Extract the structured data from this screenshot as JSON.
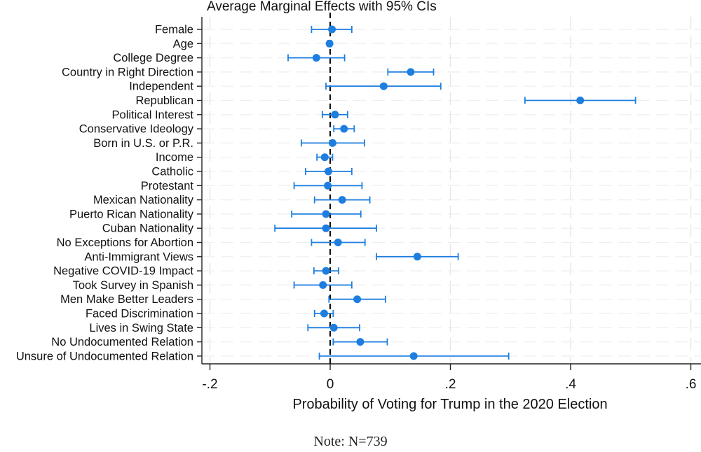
{
  "chart_data": {
    "type": "coefficient-plot",
    "title": "Average Marginal Effects with 95% CIs",
    "xlabel": "Probability of Voting for Trump in the 2020 Election",
    "ylabel": "",
    "xlim": [
      -0.2,
      0.6
    ],
    "xticks": [
      -0.2,
      0,
      0.2,
      0.4,
      0.6
    ],
    "xtick_labels": [
      "-.2",
      "0",
      ".2",
      ".4",
      ".6"
    ],
    "reference_line": 0,
    "grid": true,
    "marker_color": "#1e7ee0",
    "variables": [
      {
        "label": "Female",
        "estimate": 0.003,
        "ci_low": -0.031,
        "ci_high": 0.036
      },
      {
        "label": "Age",
        "estimate": -0.001,
        "ci_low": -0.004,
        "ci_high": 0.002
      },
      {
        "label": "College Degree",
        "estimate": -0.023,
        "ci_low": -0.07,
        "ci_high": 0.024
      },
      {
        "label": "Country in Right Direction",
        "estimate": 0.134,
        "ci_low": 0.096,
        "ci_high": 0.172
      },
      {
        "label": "Independent",
        "estimate": 0.089,
        "ci_low": -0.007,
        "ci_high": 0.184
      },
      {
        "label": "Republican",
        "estimate": 0.416,
        "ci_low": 0.324,
        "ci_high": 0.508
      },
      {
        "label": "Political Interest",
        "estimate": 0.008,
        "ci_low": -0.013,
        "ci_high": 0.029
      },
      {
        "label": "Conservative Ideology",
        "estimate": 0.023,
        "ci_low": 0.006,
        "ci_high": 0.04
      },
      {
        "label": "Born in U.S. or P.R.",
        "estimate": 0.004,
        "ci_low": -0.048,
        "ci_high": 0.057
      },
      {
        "label": "Income",
        "estimate": -0.009,
        "ci_low": -0.022,
        "ci_high": 0.004
      },
      {
        "label": "Catholic",
        "estimate": -0.003,
        "ci_low": -0.041,
        "ci_high": 0.036
      },
      {
        "label": "Protestant",
        "estimate": -0.004,
        "ci_low": -0.06,
        "ci_high": 0.053
      },
      {
        "label": "Mexican Nationality",
        "estimate": 0.02,
        "ci_low": -0.026,
        "ci_high": 0.066
      },
      {
        "label": "Puerto Rican Nationality",
        "estimate": -0.007,
        "ci_low": -0.064,
        "ci_high": 0.051
      },
      {
        "label": "Cuban Nationality",
        "estimate": -0.007,
        "ci_low": -0.092,
        "ci_high": 0.077
      },
      {
        "label": "No Exceptions for Abortion",
        "estimate": 0.013,
        "ci_low": -0.031,
        "ci_high": 0.058
      },
      {
        "label": "Anti-Immigrant Views",
        "estimate": 0.145,
        "ci_low": 0.077,
        "ci_high": 0.213
      },
      {
        "label": "Negative COVID-19 Impact",
        "estimate": -0.007,
        "ci_low": -0.027,
        "ci_high": 0.014
      },
      {
        "label": "Took Survey in Spanish",
        "estimate": -0.012,
        "ci_low": -0.06,
        "ci_high": 0.036
      },
      {
        "label": "Men Make Better Leaders",
        "estimate": 0.045,
        "ci_low": -0.002,
        "ci_high": 0.092
      },
      {
        "label": "Faced Discrimination",
        "estimate": -0.01,
        "ci_low": -0.026,
        "ci_high": 0.005
      },
      {
        "label": "Lives in Swing State",
        "estimate": 0.006,
        "ci_low": -0.037,
        "ci_high": 0.049
      },
      {
        "label": "No Undocumented Relation",
        "estimate": 0.05,
        "ci_low": 0.005,
        "ci_high": 0.095
      },
      {
        "label": "Unsure of Undocumented Relation",
        "estimate": 0.139,
        "ci_low": -0.018,
        "ci_high": 0.297
      }
    ]
  },
  "note": "Note: N=739"
}
